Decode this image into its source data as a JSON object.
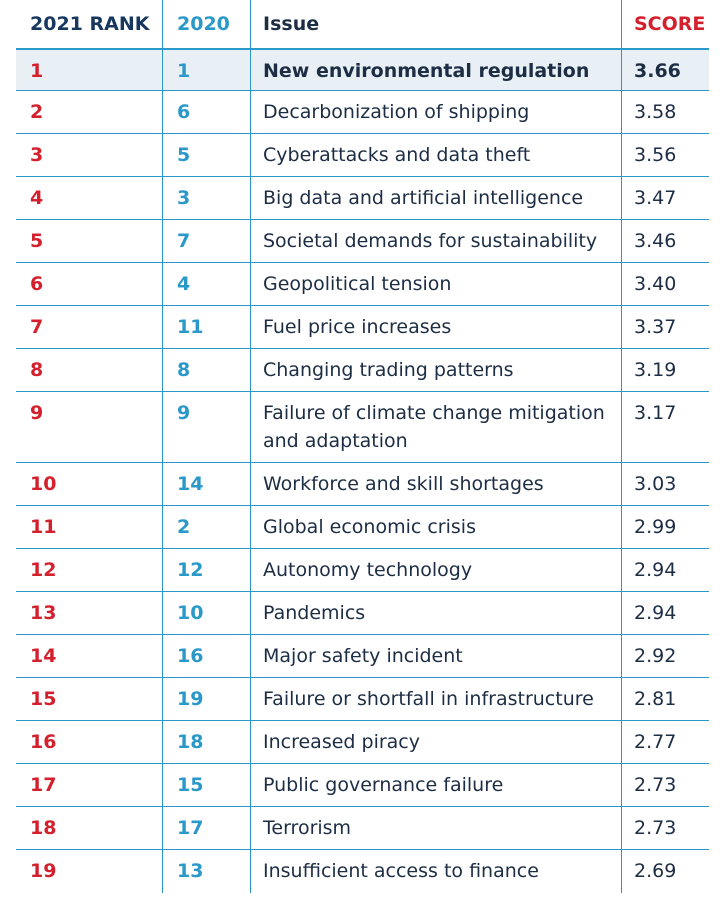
{
  "header": {
    "rank_2021": "2021 RANK",
    "rank_2020": "2020",
    "issue": "Issue",
    "score": "SCORE"
  },
  "rows": [
    {
      "rank_2021": "1",
      "rank_2020": "1",
      "issue": "New environmental regulation",
      "score": "3.66"
    },
    {
      "rank_2021": "2",
      "rank_2020": "6",
      "issue": "Decarbonization of shipping",
      "score": "3.58"
    },
    {
      "rank_2021": "3",
      "rank_2020": "5",
      "issue": "Cyberattacks and data theft",
      "score": "3.56"
    },
    {
      "rank_2021": "4",
      "rank_2020": "3",
      "issue": "Big data and artificial intelligence",
      "score": "3.47"
    },
    {
      "rank_2021": "5",
      "rank_2020": "7",
      "issue": "Societal demands for sustainability",
      "score": "3.46"
    },
    {
      "rank_2021": "6",
      "rank_2020": "4",
      "issue": "Geopolitical tension",
      "score": "3.40"
    },
    {
      "rank_2021": "7",
      "rank_2020": "11",
      "issue": "Fuel price increases",
      "score": "3.37"
    },
    {
      "rank_2021": "8",
      "rank_2020": "8",
      "issue": "Changing trading patterns",
      "score": "3.19"
    },
    {
      "rank_2021": "9",
      "rank_2020": "9",
      "issue": "Failure of climate change mitigation and adaptation",
      "score": "3.17"
    },
    {
      "rank_2021": "10",
      "rank_2020": "14",
      "issue": "Workforce and skill shortages",
      "score": "3.03"
    },
    {
      "rank_2021": "11",
      "rank_2020": "2",
      "issue": "Global economic crisis",
      "score": "2.99"
    },
    {
      "rank_2021": "12",
      "rank_2020": "12",
      "issue": "Autonomy technology",
      "score": "2.94"
    },
    {
      "rank_2021": "13",
      "rank_2020": "10",
      "issue": "Pandemics",
      "score": "2.94"
    },
    {
      "rank_2021": "14",
      "rank_2020": "16",
      "issue": "Major safety incident",
      "score": "2.92"
    },
    {
      "rank_2021": "15",
      "rank_2020": "19",
      "issue": "Failure or shortfall in infrastructure",
      "score": "2.81"
    },
    {
      "rank_2021": "16",
      "rank_2020": "18",
      "issue": "Increased piracy",
      "score": "2.77"
    },
    {
      "rank_2021": "17",
      "rank_2020": "15",
      "issue": "Public governance failure",
      "score": "2.73"
    },
    {
      "rank_2021": "18",
      "rank_2020": "17",
      "issue": "Terrorism",
      "score": "2.73"
    },
    {
      "rank_2021": "19",
      "rank_2020": "13",
      "issue": "Insufficient access to finance",
      "score": "2.69"
    }
  ]
}
